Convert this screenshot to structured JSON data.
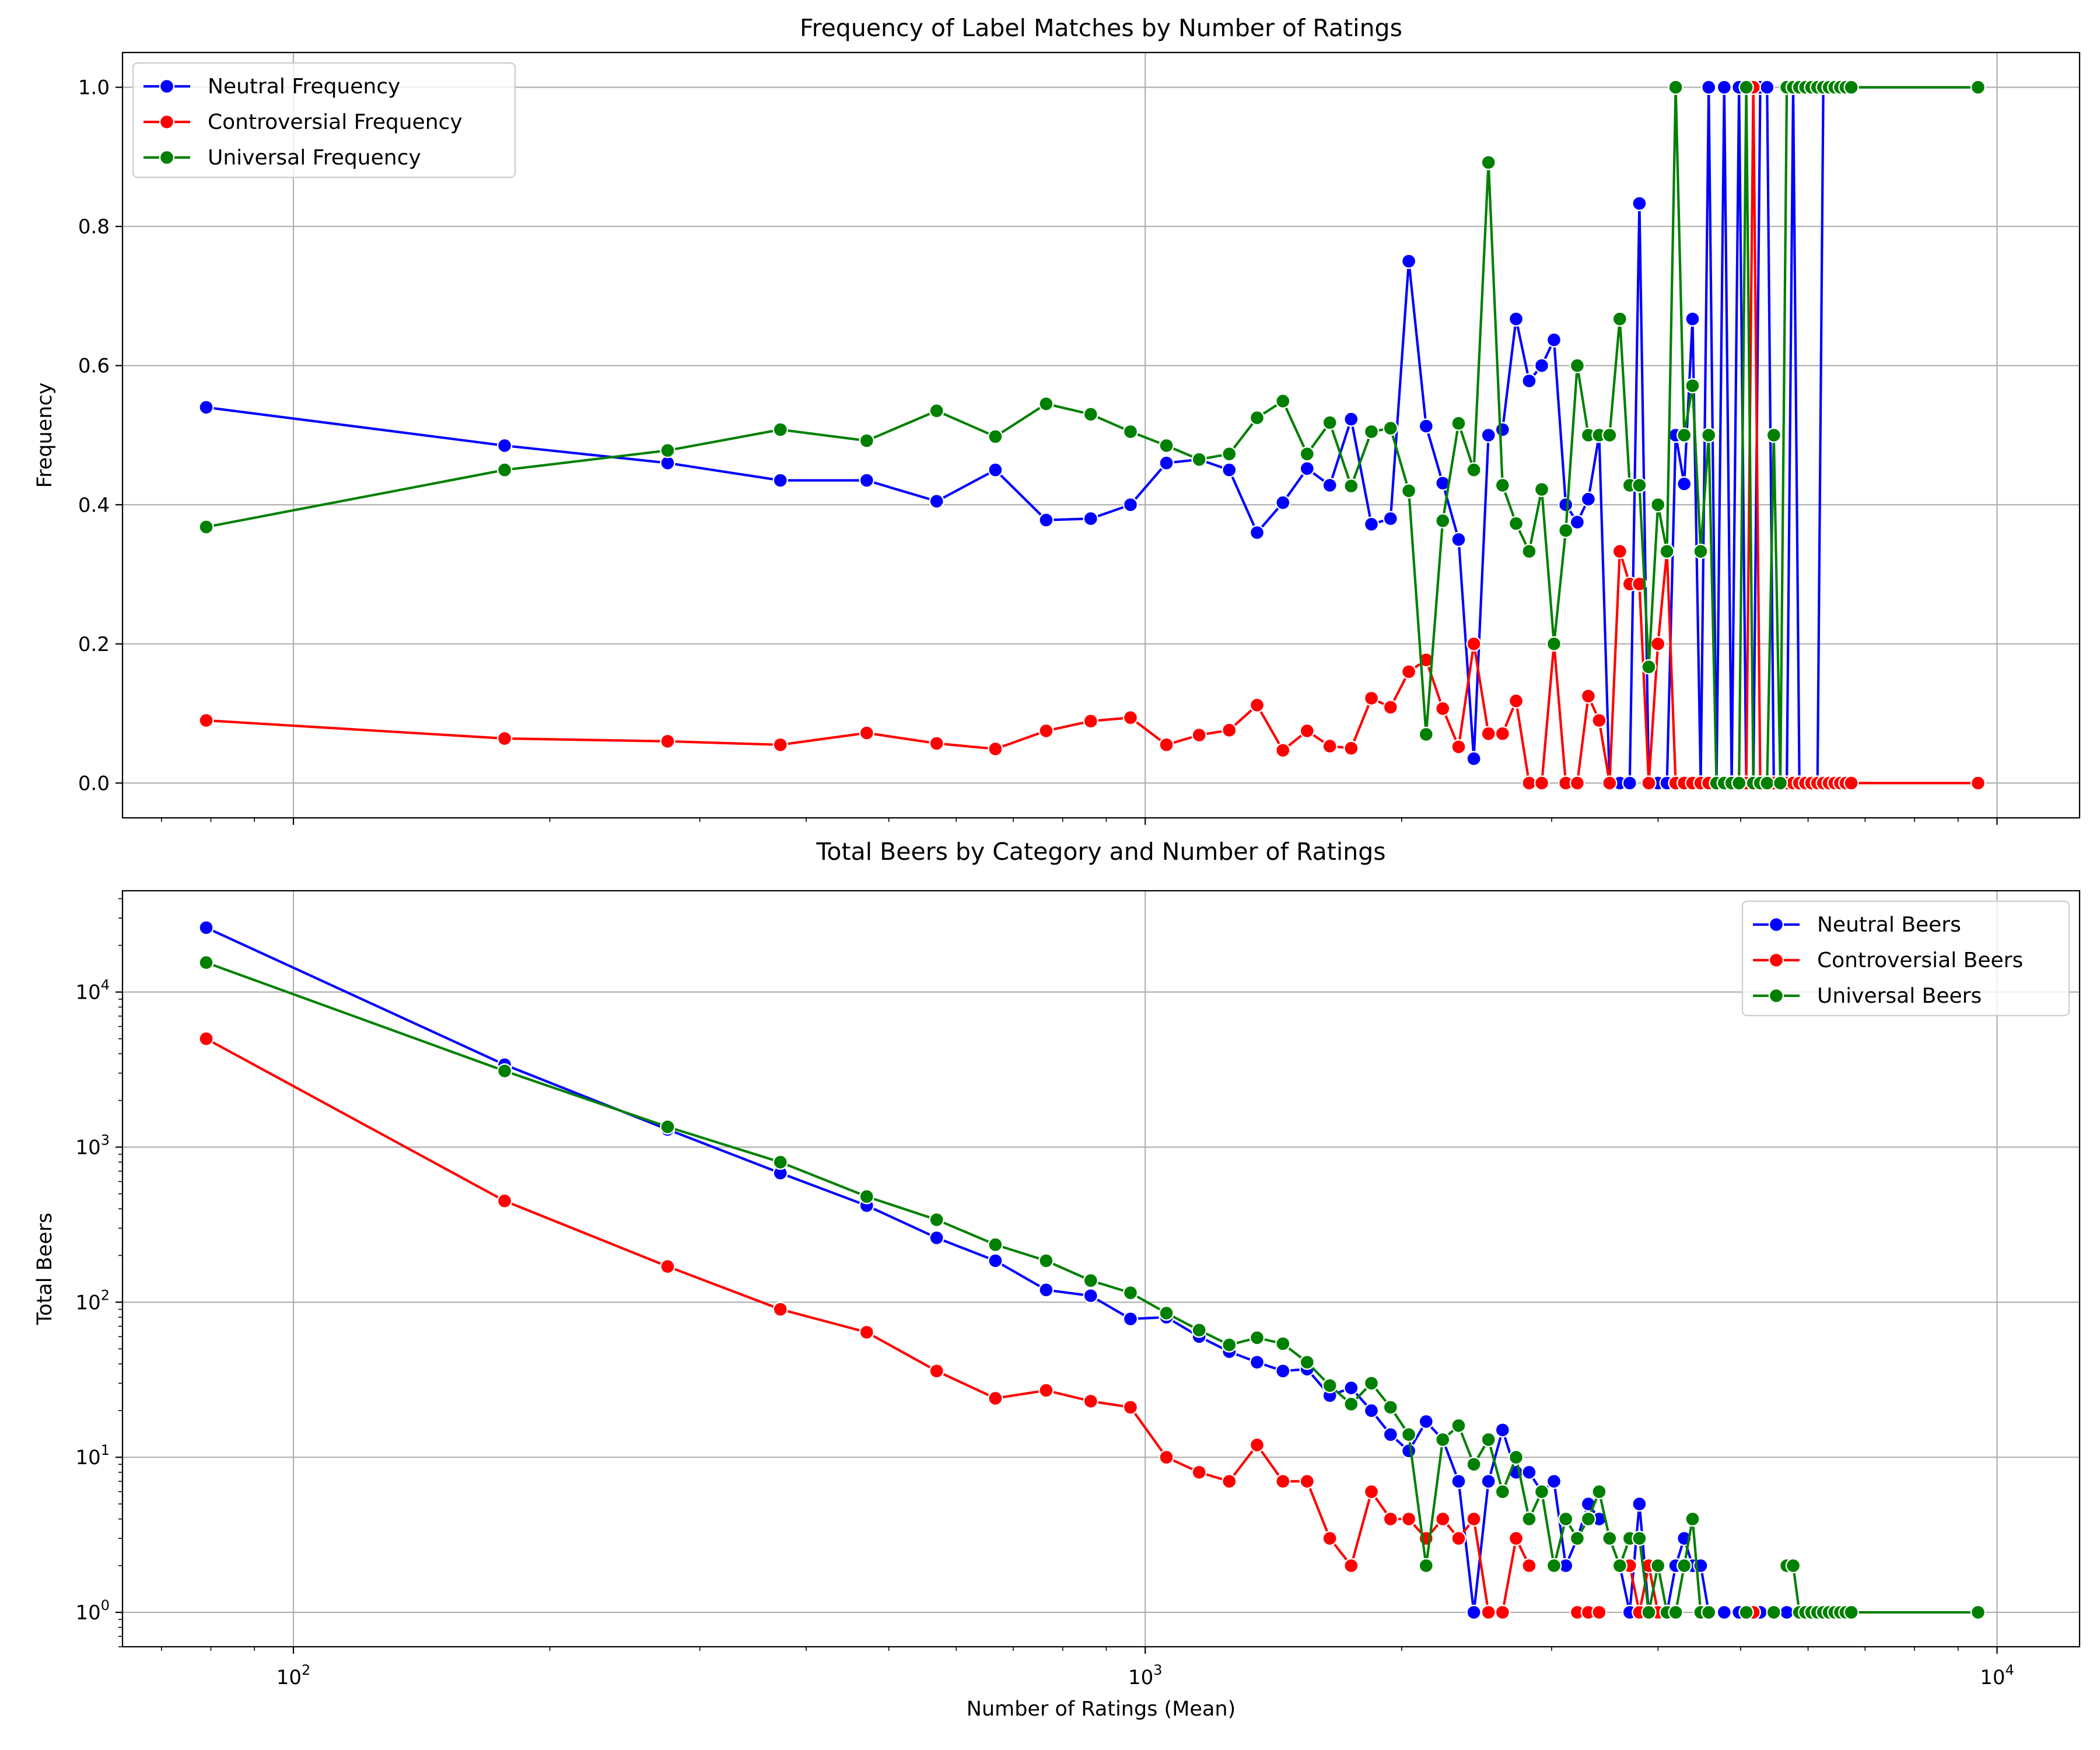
{
  "chart_data": [
    {
      "type": "line",
      "title": "Frequency of Label Matches by Number of Ratings",
      "xlabel": "",
      "ylabel": "Frequency",
      "xscale": "log",
      "yscale": "linear",
      "xlim": [
        63,
        12500
      ],
      "ylim": [
        -0.05,
        1.05
      ],
      "yticks": [
        {
          "value": 0.0,
          "label": "0.0"
        },
        {
          "value": 0.2,
          "label": "0.2"
        },
        {
          "value": 0.4,
          "label": "0.4"
        },
        {
          "value": 0.6,
          "label": "0.6"
        },
        {
          "value": 0.8,
          "label": "0.8"
        },
        {
          "value": 1.0,
          "label": "1.0"
        }
      ],
      "xticks": [],
      "grid": true,
      "legend_position": "upper-left",
      "x": [
        79,
        177,
        275,
        373,
        471,
        569,
        667,
        765,
        863,
        961,
        1059,
        1157,
        1255,
        1353,
        1451,
        1549,
        1647,
        1745,
        1843,
        1941,
        2039,
        2137,
        2235,
        2333,
        2431,
        2529,
        2627,
        2725,
        2823,
        2921,
        3019,
        3117,
        3215,
        3313,
        3411,
        3509,
        3607,
        3705,
        3803,
        3901,
        3999,
        4097,
        4195,
        4293,
        4391,
        4489,
        4587,
        4685,
        4783,
        4881,
        4979,
        5077,
        5175,
        5273,
        5371,
        5469,
        5567,
        5665,
        5763,
        5861,
        5959,
        6057,
        6155,
        6253,
        6351,
        6449,
        6547,
        6645,
        6743,
        9500
      ],
      "series": [
        {
          "name": "Neutral Frequency",
          "color": "#0000ff",
          "values": [
            0.54,
            0.485,
            0.46,
            0.435,
            0.435,
            0.405,
            0.45,
            0.378,
            0.38,
            0.4,
            0.46,
            0.465,
            0.45,
            0.36,
            0.403,
            0.452,
            0.428,
            0.523,
            0.372,
            0.38,
            0.75,
            0.513,
            0.431,
            0.35,
            0.035,
            0.5,
            0.508,
            0.667,
            0.578,
            0.6,
            0.637,
            0.4,
            0.375,
            0.408,
            0.5,
            0.0,
            0.0,
            0.0,
            0.833,
            0.0,
            0.0,
            0.0,
            0.5,
            0.43,
            0.667,
            0.0,
            1.0,
            0.0,
            1.0,
            0.0,
            1.0,
            0.0,
            0.0,
            1.0,
            1.0,
            0.0,
            0.0,
            0.0,
            1.0,
            0.0,
            0.0,
            0.0,
            0.0,
            1.0,
            1.0,
            1.0,
            1.0,
            1.0,
            1.0,
            1.0
          ]
        },
        {
          "name": "Controversial Frequency",
          "color": "#ff0000",
          "values": [
            0.09,
            0.064,
            0.06,
            0.055,
            0.072,
            0.057,
            0.049,
            0.075,
            0.089,
            0.094,
            0.055,
            0.069,
            0.076,
            0.112,
            0.047,
            0.075,
            0.053,
            0.05,
            0.122,
            0.109,
            0.16,
            0.177,
            0.107,
            0.052,
            0.2,
            0.071,
            0.071,
            0.118,
            0.0,
            0.0,
            0.2,
            0.0,
            0.0,
            0.125,
            0.09,
            0.0,
            0.333,
            0.286,
            0.286,
            0.0,
            0.2,
            0.333,
            0.0,
            0.0,
            0.0,
            0.0,
            0.0,
            0.0,
            0.0,
            0.0,
            0.0,
            0.0,
            1.0,
            0.0,
            0.0,
            0.0,
            0.0,
            0.0,
            0.0,
            0.0,
            0.0,
            0.0,
            0.0,
            0.0,
            0.0,
            0.0,
            0.0,
            0.0,
            0.0,
            0.0
          ]
        },
        {
          "name": "Universal Frequency",
          "color": "#008000",
          "values": [
            0.368,
            0.45,
            0.478,
            0.508,
            0.492,
            0.535,
            0.498,
            0.545,
            0.53,
            0.505,
            0.485,
            0.465,
            0.473,
            0.525,
            0.549,
            0.473,
            0.518,
            0.427,
            0.505,
            0.51,
            0.42,
            0.07,
            0.377,
            0.517,
            0.45,
            0.892,
            0.428,
            0.373,
            0.333,
            0.422,
            0.2,
            0.363,
            0.6,
            0.5,
            0.5,
            0.5,
            0.667,
            0.428,
            0.428,
            0.167,
            0.4,
            0.333,
            1.0,
            0.5,
            0.571,
            0.333,
            0.5,
            0.0,
            0.0,
            0.0,
            0.0,
            1.0,
            0.0,
            0.0,
            0.0,
            0.5,
            0.0,
            1.0,
            1.0,
            1.0,
            1.0,
            1.0,
            1.0,
            1.0,
            1.0,
            1.0,
            1.0,
            1.0,
            1.0,
            1.0
          ]
        }
      ]
    },
    {
      "type": "line",
      "title": "Total Beers by Category and Number of Ratings",
      "xlabel": "Number of Ratings (Mean)",
      "ylabel": "Total Beers",
      "xscale": "log",
      "yscale": "log",
      "xlim": [
        63,
        12500
      ],
      "ylim": [
        0.6,
        45000
      ],
      "yticks": [
        {
          "value": 1,
          "base": "10",
          "exp": "0"
        },
        {
          "value": 10,
          "base": "10",
          "exp": "1"
        },
        {
          "value": 100,
          "base": "10",
          "exp": "2"
        },
        {
          "value": 1000,
          "base": "10",
          "exp": "3"
        },
        {
          "value": 10000,
          "base": "10",
          "exp": "4"
        }
      ],
      "xticks": [
        {
          "value": 100,
          "base": "10",
          "exp": "2"
        },
        {
          "value": 1000,
          "base": "10",
          "exp": "3"
        },
        {
          "value": 10000,
          "base": "10",
          "exp": "4"
        }
      ],
      "grid": true,
      "legend_position": "upper-right",
      "x": [
        79,
        177,
        275,
        373,
        471,
        569,
        667,
        765,
        863,
        961,
        1059,
        1157,
        1255,
        1353,
        1451,
        1549,
        1647,
        1745,
        1843,
        1941,
        2039,
        2137,
        2235,
        2333,
        2431,
        2529,
        2627,
        2725,
        2823,
        2921,
        3019,
        3117,
        3215,
        3313,
        3411,
        3509,
        3607,
        3705,
        3803,
        3901,
        3999,
        4097,
        4195,
        4293,
        4391,
        4489,
        4587,
        4685,
        4783,
        4881,
        4979,
        5077,
        5175,
        5273,
        5371,
        5469,
        5567,
        5665,
        5763,
        5861,
        5959,
        6057,
        6155,
        6253,
        6351,
        6449,
        6547,
        6645,
        6743,
        9500
      ],
      "series": [
        {
          "name": "Neutral Beers",
          "color": "#0000ff",
          "values": [
            26000,
            3400,
            1300,
            680,
            420,
            260,
            185,
            120,
            110,
            78,
            80,
            60,
            48,
            41,
            36,
            37,
            25,
            28,
            20,
            14,
            11,
            17,
            13,
            7,
            1,
            7,
            15,
            8,
            8,
            6,
            7,
            2,
            3,
            5,
            4,
            null,
            2,
            1,
            5,
            1,
            null,
            1,
            2,
            3,
            2,
            2,
            1,
            null,
            1,
            null,
            1,
            null,
            1,
            1,
            null,
            1,
            null,
            1,
            null,
            1,
            null,
            null,
            null,
            null,
            null,
            null,
            null,
            null,
            null,
            null
          ]
        },
        {
          "name": "Controversial Beers",
          "color": "#ff0000",
          "values": [
            5000,
            450,
            170,
            90,
            64,
            36,
            24,
            27,
            23,
            21,
            10,
            8,
            7,
            12,
            7,
            7,
            3,
            2,
            6,
            4,
            4,
            3,
            4,
            3,
            4,
            1,
            1,
            3,
            2,
            null,
            null,
            null,
            1,
            1,
            1,
            null,
            2,
            2,
            1,
            2,
            1,
            null,
            null,
            null,
            null,
            null,
            null,
            null,
            null,
            null,
            null,
            null,
            1,
            null,
            null,
            null,
            null,
            null,
            null,
            null,
            null,
            null,
            null,
            null,
            null,
            null,
            null,
            null,
            null,
            null
          ]
        },
        {
          "name": "Universal Beers",
          "color": "#008000",
          "values": [
            15500,
            3100,
            1350,
            800,
            480,
            340,
            235,
            185,
            138,
            115,
            85,
            66,
            53,
            59,
            54,
            41,
            29,
            22,
            30,
            21,
            14,
            2,
            13,
            16,
            9,
            13,
            6,
            10,
            4,
            6,
            2,
            4,
            3,
            4,
            6,
            3,
            2,
            3,
            3,
            1,
            2,
            1,
            1,
            2,
            4,
            1,
            1,
            null,
            null,
            null,
            null,
            1,
            null,
            null,
            null,
            1,
            null,
            2,
            2,
            1,
            1,
            1,
            1,
            1,
            1,
            1,
            1,
            1,
            1,
            1
          ]
        }
      ]
    }
  ]
}
